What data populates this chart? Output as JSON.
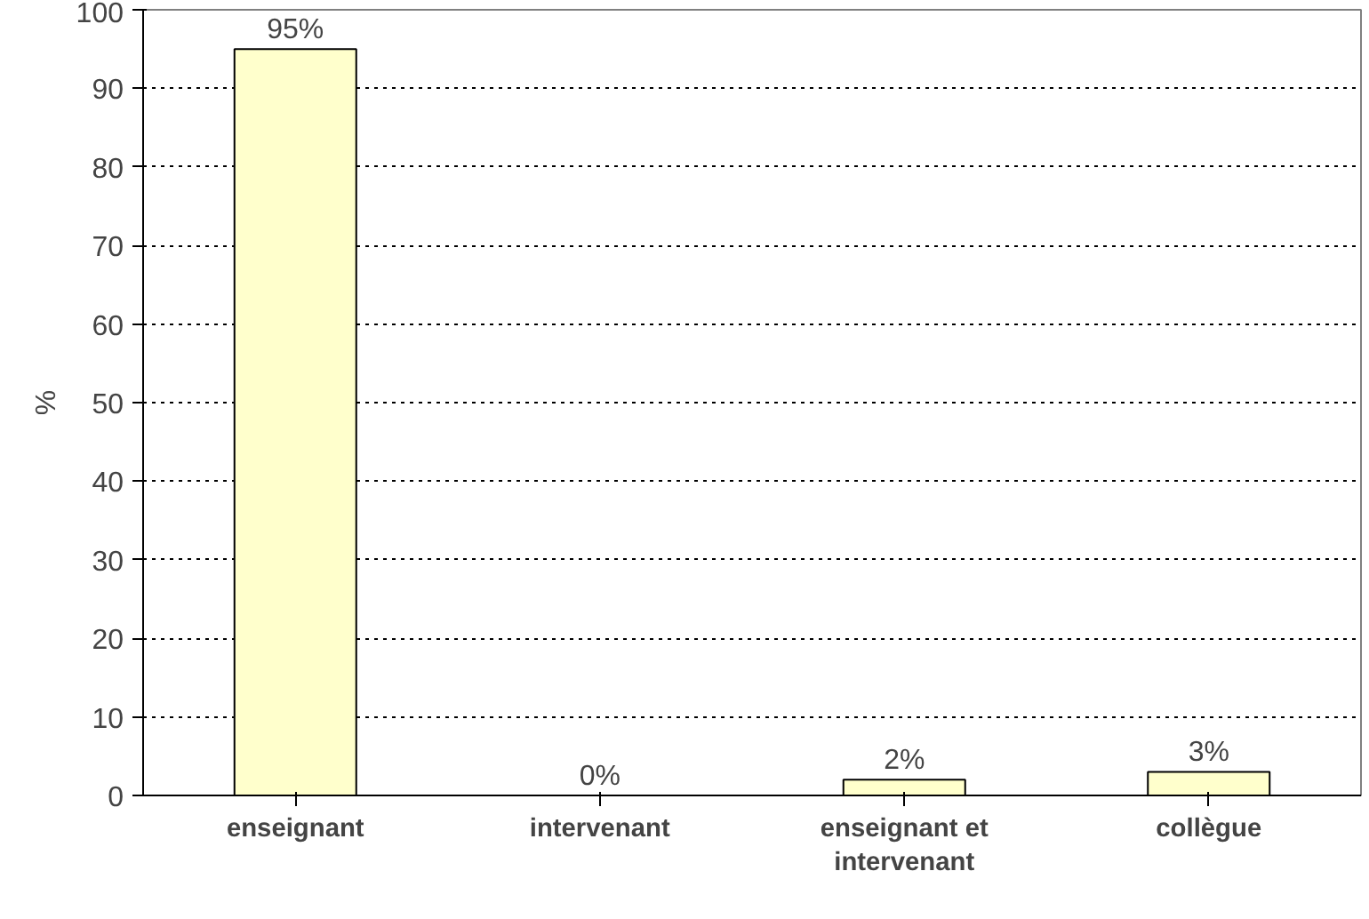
{
  "chart_data": {
    "type": "bar",
    "ylabel": "%",
    "categories": [
      "enseignant",
      "intervenant",
      "enseignant et intervenant",
      "collègue"
    ],
    "values": [
      95,
      0,
      2,
      3
    ],
    "value_labels": [
      "95%",
      "0%",
      "2%",
      "3%"
    ],
    "color": "#ffffcc",
    "ylim": [
      0,
      100
    ],
    "yticks": [
      0,
      10,
      20,
      30,
      40,
      50,
      60,
      70,
      80,
      90,
      100
    ],
    "grid": "y"
  }
}
